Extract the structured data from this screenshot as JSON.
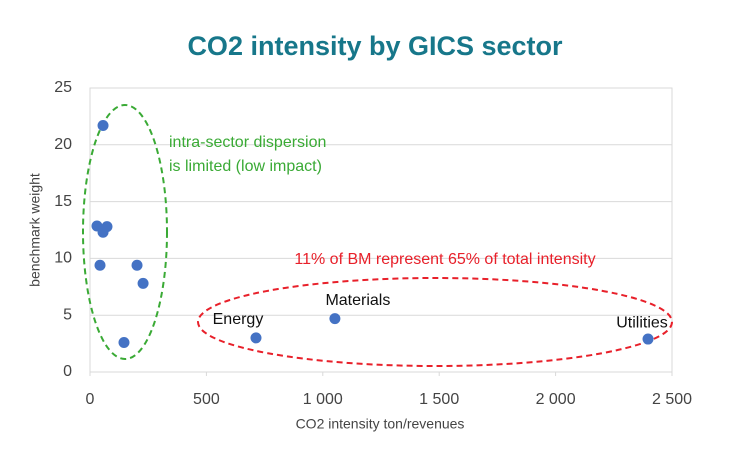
{
  "chart_data": {
    "type": "scatter",
    "title": "CO2 intensity by GICS sector",
    "x_label": "CO2 intensity ton/revenues",
    "y_label": "benchmark weight",
    "x": [
      56,
      30,
      73,
      56,
      43,
      202,
      228,
      146,
      713,
      1052,
      2397
    ],
    "values": [
      21.7,
      12.85,
      12.8,
      12.3,
      9.4,
      9.4,
      7.8,
      2.6,
      3.0,
      4.7,
      2.9
    ],
    "point_labels": [
      null,
      null,
      null,
      null,
      null,
      null,
      null,
      null,
      "Energy",
      "Materials",
      "Utilities"
    ],
    "color": "#4472c4",
    "xlim": [
      0,
      2500
    ],
    "ylim": [
      0,
      25
    ],
    "xticks": [
      0,
      500,
      {
        "value": 1000,
        "label": "1 000"
      },
      {
        "value": 1500,
        "label": "1 500"
      },
      {
        "value": 2000,
        "label": "2 000"
      },
      {
        "value": 2500,
        "label": "2 500"
      }
    ],
    "yticks": [
      0,
      5,
      10,
      15,
      20,
      25
    ],
    "grid": true,
    "annotations": [
      {
        "lines": [
          "intra-sector dispersion",
          "is limited (low impact)"
        ],
        "color": "#3aaa35"
      },
      {
        "lines": [
          "11% of BM represent 65% of total intensity"
        ],
        "color": "#e8202a"
      }
    ]
  }
}
